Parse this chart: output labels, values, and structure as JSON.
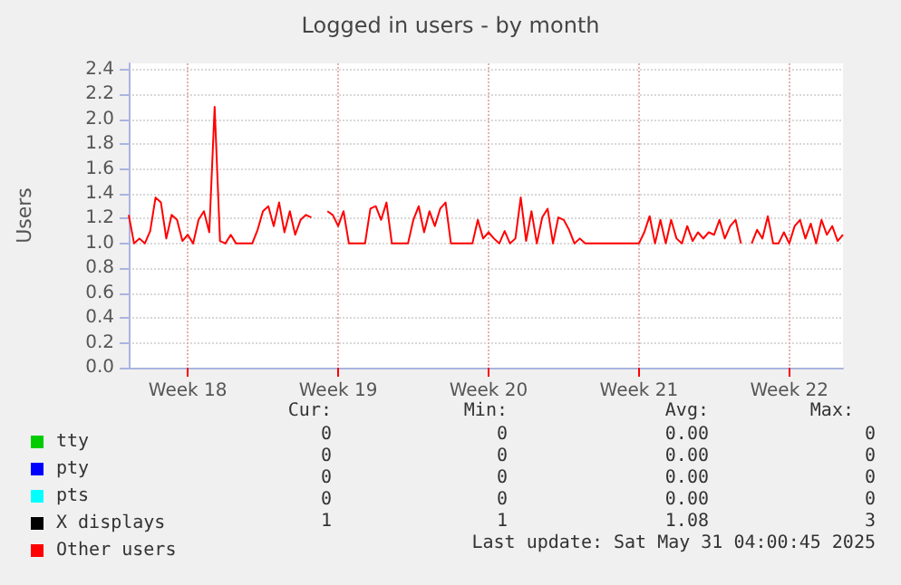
{
  "chart_data": {
    "type": "line",
    "title": "Logged in users - by month",
    "ylabel": "Users",
    "categories": [
      null,
      null,
      null,
      null,
      null,
      null,
      null,
      null,
      null,
      null,
      null,
      "Week 18",
      null,
      null,
      null,
      null,
      null,
      null,
      null,
      null,
      null,
      null,
      null,
      null,
      null,
      null,
      null,
      null,
      null,
      null,
      null,
      null,
      null,
      null,
      null,
      null,
      null,
      null,
      null,
      "Week 19",
      null,
      null,
      null,
      null,
      null,
      null,
      null,
      null,
      null,
      null,
      null,
      null,
      null,
      null,
      null,
      null,
      null,
      null,
      null,
      null,
      null,
      null,
      null,
      null,
      null,
      null,
      null,
      "Week 20",
      null,
      null,
      null,
      null,
      null,
      null,
      null,
      null,
      null,
      null,
      null,
      null,
      null,
      null,
      null,
      null,
      null,
      null,
      null,
      null,
      null,
      null,
      null,
      null,
      null,
      null,
      null,
      "Week 21",
      null,
      null,
      null,
      null,
      null,
      null,
      null,
      null,
      null,
      null,
      null,
      null,
      null,
      null,
      null,
      null,
      null,
      null,
      null,
      null,
      null,
      null,
      null,
      null,
      null,
      null,
      null,
      "Week 22",
      null,
      null,
      null,
      null,
      null,
      null,
      null,
      null,
      null,
      null
    ],
    "ylim": [
      0,
      2.45
    ],
    "yticks": [
      {
        "value": 0,
        "label": "0.0"
      },
      {
        "value": 0.2,
        "label": "0.2"
      },
      {
        "value": 0.4,
        "label": "0.4"
      },
      {
        "value": 0.6,
        "label": "0.6"
      },
      {
        "value": 0.8,
        "label": "0.8"
      },
      {
        "value": 1,
        "label": "1.0"
      },
      {
        "value": 1.2,
        "label": "1.2"
      },
      {
        "value": 1.4,
        "label": "1.4"
      },
      {
        "value": 1.6,
        "label": "1.6"
      },
      {
        "value": 1.8,
        "label": "1.8"
      },
      {
        "value": 2,
        "label": "2.0"
      },
      {
        "value": 2.2,
        "label": "2.2"
      },
      {
        "value": 2.4,
        "label": "2.4"
      }
    ],
    "grid": true,
    "legend": "bottom left",
    "marker": "none",
    "line_style": "solid",
    "series": [
      {
        "name": "tty",
        "color": "#00cc00",
        "values": [
          null,
          null,
          null,
          null,
          null,
          null,
          null,
          null,
          null,
          null,
          null,
          null,
          null,
          null,
          null,
          null,
          null,
          null,
          null,
          null,
          null,
          null,
          null,
          null,
          null,
          null,
          null,
          null,
          null,
          null,
          null,
          null,
          null,
          null,
          null,
          null,
          null,
          null,
          null,
          null,
          null,
          null,
          null,
          null,
          null,
          null,
          null,
          null,
          null,
          null,
          null,
          null,
          null,
          null,
          null,
          null,
          null,
          null,
          null,
          null,
          null,
          null,
          null,
          null,
          null,
          null,
          null,
          null,
          null,
          null,
          null,
          null,
          null,
          null,
          null,
          null,
          null,
          null,
          null,
          null,
          null,
          null,
          null,
          null,
          null,
          null,
          null,
          null,
          null,
          null,
          null,
          null,
          null,
          null,
          null,
          null,
          null,
          null,
          null,
          null,
          null,
          null,
          null,
          null,
          null,
          null,
          null,
          null,
          null,
          null,
          null,
          null,
          null,
          null,
          null,
          null,
          null,
          null,
          null,
          null,
          null,
          null,
          null,
          null,
          null,
          null,
          null,
          null,
          null,
          null,
          null,
          null,
          null,
          null
        ]
      },
      {
        "name": "pty",
        "color": "#0000ff",
        "values": [
          null,
          null,
          null,
          null,
          null,
          null,
          null,
          null,
          null,
          null,
          null,
          null,
          null,
          null,
          null,
          null,
          null,
          null,
          null,
          null,
          null,
          null,
          null,
          null,
          null,
          null,
          null,
          null,
          null,
          null,
          null,
          null,
          null,
          null,
          null,
          null,
          null,
          null,
          null,
          null,
          null,
          null,
          null,
          null,
          null,
          null,
          null,
          null,
          null,
          null,
          null,
          null,
          null,
          null,
          null,
          null,
          null,
          null,
          null,
          null,
          null,
          null,
          null,
          null,
          null,
          null,
          null,
          null,
          null,
          null,
          null,
          null,
          null,
          null,
          null,
          null,
          null,
          null,
          null,
          null,
          null,
          null,
          null,
          null,
          null,
          null,
          null,
          null,
          null,
          null,
          null,
          null,
          null,
          null,
          null,
          null,
          null,
          null,
          null,
          null,
          null,
          null,
          null,
          null,
          null,
          null,
          null,
          null,
          null,
          null,
          null,
          null,
          null,
          null,
          null,
          null,
          null,
          null,
          null,
          null,
          null,
          null,
          null,
          null,
          null,
          null,
          null,
          null,
          null,
          null,
          null,
          null,
          null,
          null
        ]
      },
      {
        "name": "pts",
        "color": "#00ffff",
        "values": [
          null,
          null,
          null,
          null,
          null,
          null,
          null,
          null,
          null,
          null,
          null,
          null,
          null,
          null,
          null,
          null,
          null,
          null,
          null,
          null,
          null,
          null,
          null,
          null,
          null,
          null,
          null,
          null,
          null,
          null,
          null,
          null,
          null,
          null,
          null,
          null,
          null,
          null,
          null,
          null,
          null,
          null,
          null,
          null,
          null,
          null,
          null,
          null,
          null,
          null,
          null,
          null,
          null,
          null,
          null,
          null,
          null,
          null,
          null,
          null,
          null,
          null,
          null,
          null,
          null,
          null,
          null,
          null,
          null,
          null,
          null,
          null,
          null,
          null,
          null,
          null,
          null,
          null,
          null,
          null,
          null,
          null,
          null,
          null,
          null,
          null,
          null,
          null,
          null,
          null,
          null,
          null,
          null,
          null,
          null,
          null,
          null,
          null,
          null,
          null,
          null,
          null,
          null,
          null,
          null,
          null,
          null,
          null,
          null,
          null,
          null,
          null,
          null,
          null,
          null,
          null,
          null,
          null,
          null,
          null,
          null,
          null,
          null,
          null,
          null,
          null,
          null,
          null,
          null,
          null,
          null,
          null,
          null,
          null
        ]
      },
      {
        "name": "X displays",
        "color": "#000000",
        "values": [
          null,
          null,
          null,
          null,
          null,
          null,
          null,
          null,
          null,
          null,
          null,
          null,
          null,
          null,
          null,
          null,
          null,
          null,
          null,
          null,
          null,
          null,
          null,
          null,
          null,
          null,
          null,
          null,
          null,
          null,
          null,
          null,
          null,
          null,
          null,
          null,
          null,
          null,
          null,
          null,
          null,
          null,
          null,
          null,
          null,
          null,
          null,
          null,
          null,
          null,
          null,
          null,
          null,
          null,
          null,
          null,
          null,
          null,
          null,
          null,
          null,
          null,
          null,
          null,
          null,
          null,
          null,
          null,
          null,
          null,
          null,
          null,
          null,
          null,
          null,
          null,
          null,
          null,
          null,
          null,
          null,
          null,
          null,
          null,
          null,
          null,
          null,
          null,
          null,
          null,
          null,
          null,
          null,
          null,
          null,
          null,
          null,
          null,
          null,
          null,
          null,
          null,
          null,
          null,
          null,
          null,
          null,
          null,
          null,
          null,
          null,
          null,
          null,
          null,
          null,
          null,
          null,
          null,
          null,
          null,
          null,
          null,
          null,
          null,
          null,
          null,
          null,
          null,
          null,
          null,
          null,
          null,
          null,
          null
        ]
      },
      {
        "name": "Other users",
        "color": "#ff0000",
        "values": [
          1.23,
          1.0,
          1.04,
          1.0,
          1.1,
          1.37,
          1.33,
          1.04,
          1.23,
          1.19,
          1.02,
          1.07,
          1.0,
          1.19,
          1.26,
          1.09,
          2.1,
          1.02,
          1.0,
          1.07,
          1.0,
          1.0,
          1.0,
          1.0,
          1.11,
          1.26,
          1.3,
          1.14,
          1.33,
          1.09,
          1.26,
          1.07,
          1.19,
          1.23,
          1.21,
          null,
          null,
          1.26,
          1.23,
          1.14,
          1.26,
          1.0,
          1.0,
          1.0,
          1.0,
          1.28,
          1.3,
          1.19,
          1.33,
          1.0,
          1.0,
          1.0,
          1.0,
          1.19,
          1.3,
          1.09,
          1.26,
          1.14,
          1.28,
          1.33,
          1.0,
          1.0,
          1.0,
          1.0,
          1.0,
          1.19,
          1.04,
          1.09,
          1.04,
          1.0,
          1.1,
          1.0,
          1.04,
          1.37,
          1.02,
          1.26,
          1.0,
          1.21,
          1.28,
          1.0,
          1.21,
          1.19,
          1.11,
          1.0,
          1.04,
          1.0,
          1.0,
          1.0,
          1.0,
          1.0,
          1.0,
          1.0,
          1.0,
          1.0,
          1.0,
          1.0,
          1.09,
          1.22,
          1.0,
          1.19,
          1.0,
          1.19,
          1.04,
          1.0,
          1.14,
          1.02,
          1.09,
          1.04,
          1.09,
          1.07,
          1.19,
          1.04,
          1.14,
          1.19,
          1.0,
          null,
          1.0,
          1.11,
          1.04,
          1.22,
          1.0,
          1.0,
          1.09,
          1.0,
          1.14,
          1.19,
          1.04,
          1.16,
          1.0,
          1.19,
          1.07,
          1.14,
          1.02,
          1.07
        ]
      }
    ],
    "annotations": [
      "Cur:",
      "Min:",
      "Avg:",
      "Max:",
      "0",
      "0",
      "0.00",
      "0",
      "0",
      "0",
      "0.00",
      "0",
      "0",
      "0",
      "0.00",
      "0",
      "0",
      "0",
      "0.00",
      "0",
      "1",
      "1",
      "1.08",
      "3",
      "Last update: Sat May 31 04:00:45 2025"
    ]
  }
}
